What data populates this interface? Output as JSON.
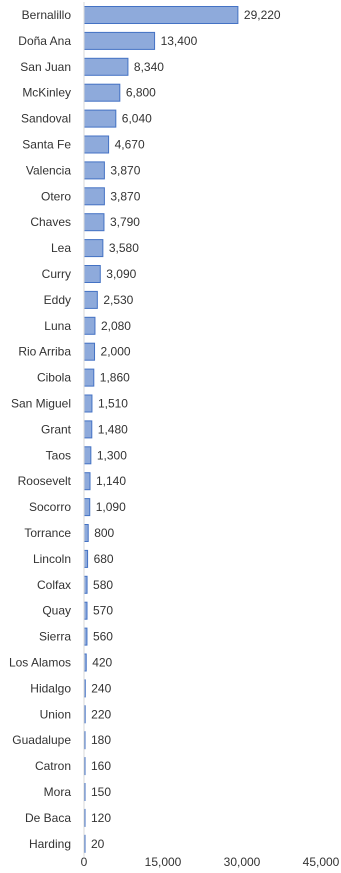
{
  "chart_data": {
    "type": "bar",
    "orientation": "horizontal",
    "title": "",
    "xlabel": "",
    "ylabel": "",
    "xlim": [
      0,
      45000
    ],
    "grid": false,
    "legend": "none",
    "bar_fill_color": "#8eaadb",
    "bar_border_color": "#4472c4",
    "x_ticks": [
      "0",
      "15,000",
      "30,000",
      "45,000"
    ],
    "x_tick_values": [
      0,
      15000,
      30000,
      45000
    ],
    "categories": [
      "Bernalillo",
      "Doña Ana",
      "San Juan",
      "McKinley",
      "Sandoval",
      "Santa Fe",
      "Valencia",
      "Otero",
      "Chaves",
      "Lea",
      "Curry",
      "Eddy",
      "Luna",
      "Rio Arriba",
      "Cibola",
      "San Miguel",
      "Grant",
      "Taos",
      "Roosevelt",
      "Socorro",
      "Torrance",
      "Lincoln",
      "Colfax",
      "Quay",
      "Sierra",
      "Los Alamos",
      "Hidalgo",
      "Union",
      "Guadalupe",
      "Catron",
      "Mora",
      "De Baca",
      "Harding"
    ],
    "values": [
      29220,
      13400,
      8340,
      6800,
      6040,
      4670,
      3870,
      3870,
      3790,
      3580,
      3090,
      2530,
      2080,
      2000,
      1860,
      1510,
      1480,
      1300,
      1140,
      1090,
      800,
      680,
      580,
      570,
      560,
      420,
      240,
      220,
      180,
      160,
      150,
      120,
      20
    ],
    "value_labels": [
      "29,220",
      "13,400",
      "8,340",
      "6,800",
      "6,040",
      "4,670",
      "3,870",
      "3,870",
      "3,790",
      "3,580",
      "3,090",
      "2,530",
      "2,080",
      "2,000",
      "1,860",
      "1,510",
      "1,480",
      "1,300",
      "1,140",
      "1,090",
      "800",
      "680",
      "580",
      "570",
      "560",
      "420",
      "240",
      "220",
      "180",
      "160",
      "150",
      "120",
      "20"
    ]
  }
}
